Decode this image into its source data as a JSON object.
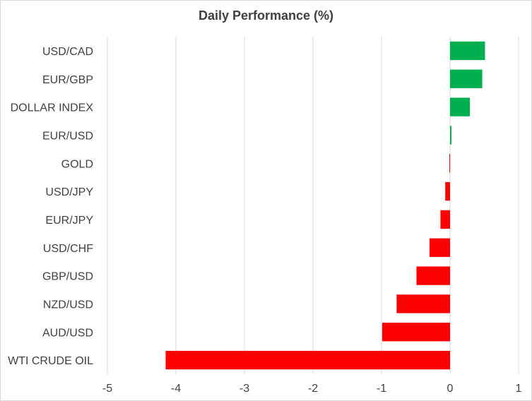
{
  "chart_data": {
    "type": "bar",
    "orientation": "horizontal",
    "title": "Daily Performance (%)",
    "xlabel": "",
    "ylabel": "",
    "categories": [
      "USD/CAD",
      "EUR/GBP",
      "DOLLAR INDEX",
      "EUR/USD",
      "GOLD",
      "USD/JPY",
      "EUR/JPY",
      "USD/CHF",
      "GBP/USD",
      "NZD/USD",
      "AUD/USD",
      "WTI CRUDE OIL"
    ],
    "values": [
      0.51,
      0.47,
      0.29,
      0.02,
      -0.01,
      -0.07,
      -0.14,
      -0.3,
      -0.49,
      -0.78,
      -0.99,
      -4.15
    ],
    "xlim": [
      -5,
      1
    ],
    "x_ticks": [
      -5,
      -4,
      -3,
      -2,
      -1,
      0,
      1
    ],
    "grid": true,
    "legend": "none",
    "colors": {
      "positive": "#00b050",
      "negative": "#ff0000",
      "grid": "#d9d9d9",
      "text": "#404040"
    }
  }
}
